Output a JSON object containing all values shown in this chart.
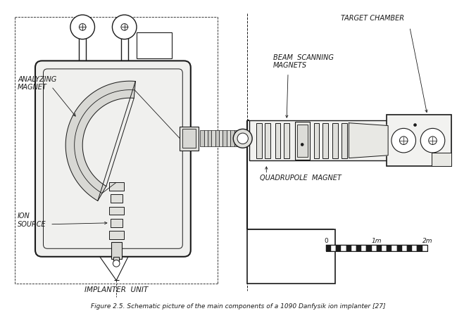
{
  "bg_color": "#ffffff",
  "line_color": "#1a1a1a",
  "title": "Figure 2.5. Schematic picture of the main components of a 1090 Danfysik ion implanter [27]",
  "labels": {
    "analyzing_magnet": "ANALYZING\nMAGNET",
    "ion_source": "ION\nSOURCE",
    "implanter_unit": "IMPLANTER  UNIT",
    "target_chamber": "TARGET CHAMBER",
    "beam_scanning": "BEAM  SCANNING\nMAGNETS",
    "quadrupole": "QUADRUPOLE  MAGNET"
  },
  "scale_label_0": "0",
  "scale_label_1m": "1m",
  "scale_label_2m": "2m"
}
